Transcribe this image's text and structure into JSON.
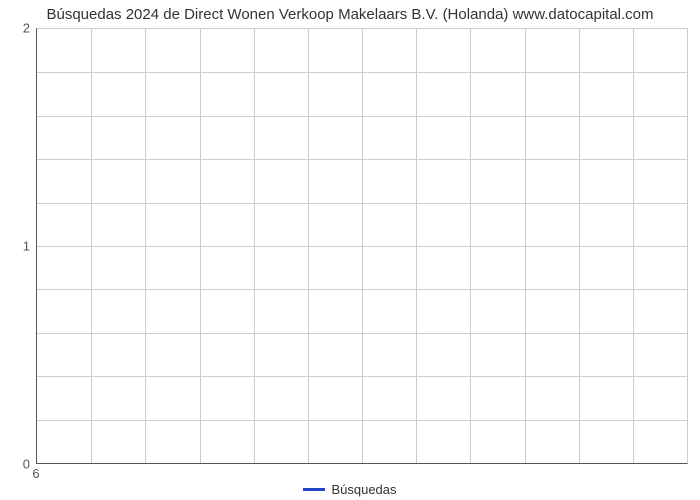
{
  "chart": {
    "type": "line",
    "title": "Búsquedas 2024 de Direct Wonen Verkoop Makelaars B.V. (Holanda) www.datocapital.com",
    "title_fontsize": 15,
    "title_color": "#333333",
    "background_color": "#ffffff",
    "plot_border_axis_color": "#555555",
    "grid_color": "#cccccc",
    "y_axis": {
      "min": 0,
      "max": 2,
      "major_ticks": [
        0,
        1,
        2
      ],
      "minor_count_between": 4,
      "label_fontsize": 13,
      "label_color": "#555555"
    },
    "x_axis": {
      "ticks": [
        6
      ],
      "tick_pos_fraction": [
        0.0
      ],
      "label_fontsize": 13,
      "label_color": "#555555",
      "vgrid_count": 12
    },
    "series": [
      {
        "name": "Búsquedas",
        "color": "#2045c6",
        "line_width": 3,
        "data": []
      }
    ],
    "legend": {
      "label": "Búsquedas",
      "swatch_color": "#2045c6",
      "fontsize": 13,
      "color": "#333333"
    }
  }
}
